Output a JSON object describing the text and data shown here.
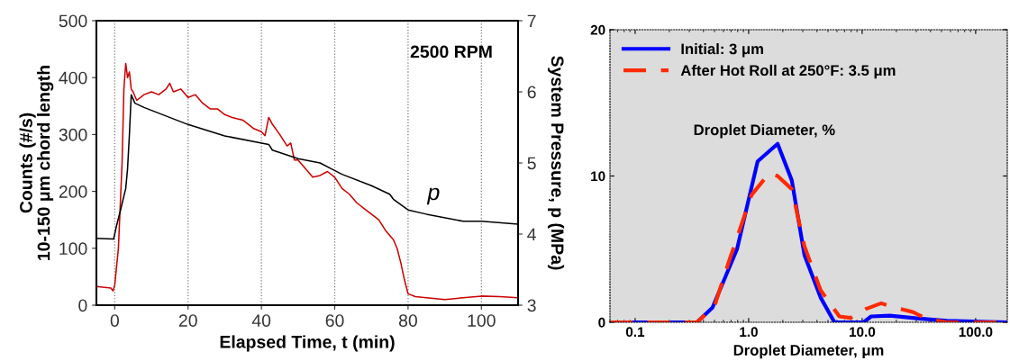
{
  "chart_data": [
    {
      "type": "line",
      "xlabel": "Elapsed Time, t (min)",
      "ylabel": "Counts (#/s)\n10-150 μm chord length",
      "y2label": "System Pressure, p (MPa)",
      "xlim": [
        -5,
        110
      ],
      "xticks": [
        0,
        20,
        40,
        60,
        80,
        100
      ],
      "ylim": [
        0,
        500
      ],
      "yticks": [
        0,
        100,
        200,
        300,
        400,
        500
      ],
      "y2lim": [
        3,
        7
      ],
      "y2ticks": [
        3,
        4,
        5,
        6,
        7
      ],
      "grid": "x",
      "legend": false,
      "annotations": [
        "2500 RPM",
        "p"
      ],
      "series": [
        {
          "color": "#cc0000",
          "x": [
            -5,
            -1,
            -0.5,
            0,
            1,
            2,
            2.5,
            3,
            3.5,
            4,
            4.5,
            5,
            6,
            8,
            10,
            12,
            14,
            15,
            16,
            18,
            20,
            22,
            24,
            26,
            28,
            30,
            32,
            35,
            38,
            40,
            41,
            42,
            43,
            45,
            47,
            48,
            49,
            50,
            52,
            54,
            56,
            58,
            60,
            62,
            64,
            66,
            68,
            70,
            72,
            74,
            76,
            77,
            78,
            79,
            80,
            82,
            85,
            90,
            95,
            100,
            105,
            110
          ],
          "values": [
            33,
            30,
            25,
            35,
            100,
            250,
            380,
            425,
            400,
            410,
            380,
            375,
            360,
            370,
            375,
            370,
            380,
            390,
            375,
            380,
            365,
            370,
            355,
            345,
            345,
            335,
            330,
            325,
            310,
            305,
            298,
            330,
            318,
            300,
            280,
            285,
            255,
            255,
            240,
            225,
            228,
            235,
            225,
            205,
            195,
            180,
            170,
            160,
            150,
            130,
            115,
            100,
            75,
            45,
            20,
            15,
            13,
            10,
            13,
            16,
            15,
            13
          ]
        },
        {
          "color": "#000000",
          "axis": "y2",
          "x": [
            -5,
            -0.3,
            0.5,
            1.5,
            3,
            3.5,
            4,
            4.5,
            5.5,
            8,
            20,
            30,
            42,
            43,
            50,
            56,
            59,
            62,
            70,
            75,
            76,
            80,
            85,
            95,
            100,
            110
          ],
          "values": [
            3.94,
            3.93,
            4.12,
            4.32,
            4.64,
            4.92,
            5.4,
            5.96,
            5.84,
            5.78,
            5.54,
            5.38,
            5.26,
            5.18,
            5.06,
            5.0,
            4.92,
            4.84,
            4.68,
            4.56,
            4.49,
            4.34,
            4.28,
            4.18,
            4.18,
            4.14
          ]
        }
      ]
    },
    {
      "type": "line",
      "xlabel": "Droplet Diameter, μm",
      "log": "x",
      "xlim": [
        0.06,
        190
      ],
      "xticks": [
        {
          "value": 0.1,
          "label": "0.1"
        },
        {
          "value": 1,
          "label": "1.0"
        },
        {
          "value": 10,
          "label": "10.0"
        },
        {
          "value": 100,
          "label": "100.0"
        }
      ],
      "ylim": [
        0,
        20
      ],
      "yticks": [
        0,
        10,
        20
      ],
      "grid": false,
      "legend": "top left",
      "annotations": [
        "Droplet Diameter, %"
      ],
      "series": [
        {
          "name": "Initial: 3 μm",
          "color": "#0000ff",
          "line_style": "solid",
          "x": [
            0.06,
            0.35,
            0.48,
            0.79,
            1.2,
            1.8,
            2.4,
            3.1,
            4.3,
            5.7,
            10.3,
            12,
            17.5,
            32,
            56,
            190
          ],
          "values": [
            0,
            0,
            1.0,
            5.0,
            11,
            12.2,
            9.7,
            4.6,
            1.7,
            0,
            0,
            0.4,
            0.45,
            0.25,
            0.1,
            0
          ]
        },
        {
          "name": "After Hot Roll at 250°F: 3.5 μm",
          "color": "#ff2a00",
          "line_style": "dashed",
          "x": [
            0.06,
            0.35,
            0.5,
            0.66,
            1.06,
            1.52,
            1.8,
            2.4,
            3.1,
            4.3,
            6.3,
            7.9,
            10.7,
            14.7,
            19.6,
            28,
            38,
            56,
            190
          ],
          "values": [
            0,
            0,
            1.1,
            4.0,
            8.7,
            10.2,
            10,
            9.1,
            5.2,
            2.2,
            0.4,
            0.3,
            0.9,
            1.3,
            1.0,
            0.7,
            0.2,
            0,
            0
          ]
        }
      ]
    }
  ]
}
